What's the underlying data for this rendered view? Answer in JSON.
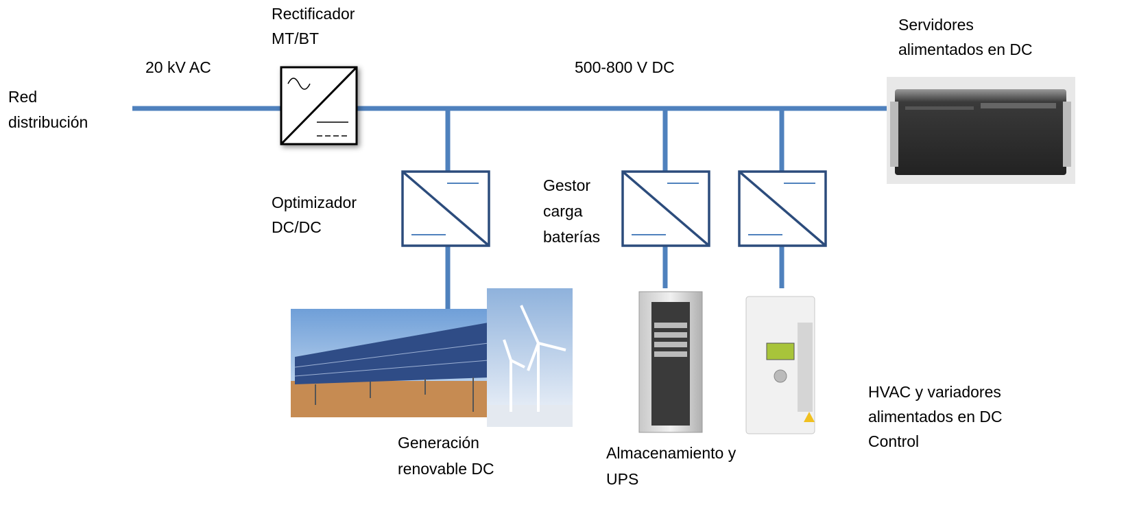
{
  "labels": [
    {
      "lines": [
        "Red",
        "distribución"
      ]
    },
    {
      "lines": [
        "20 kV AC"
      ]
    },
    {
      "lines": [
        "Rectificador",
        "MT/BT"
      ]
    },
    {
      "lines": [
        "500-800 V DC"
      ]
    },
    {
      "lines": [
        "Servidores",
        "alimentados en DC"
      ]
    },
    {
      "lines": [
        "Optimizador",
        "DC/DC"
      ]
    },
    {
      "lines": [
        "Gestor",
        "carga",
        "baterías"
      ]
    },
    {
      "lines": [
        "Generación",
        "renovable DC"
      ]
    },
    {
      "lines": [
        "Almacenamiento y",
        "UPS"
      ]
    },
    {
      "lines": [
        "HVAC y variadores",
        "alimentados en DC",
        "Control"
      ]
    }
  ]
}
